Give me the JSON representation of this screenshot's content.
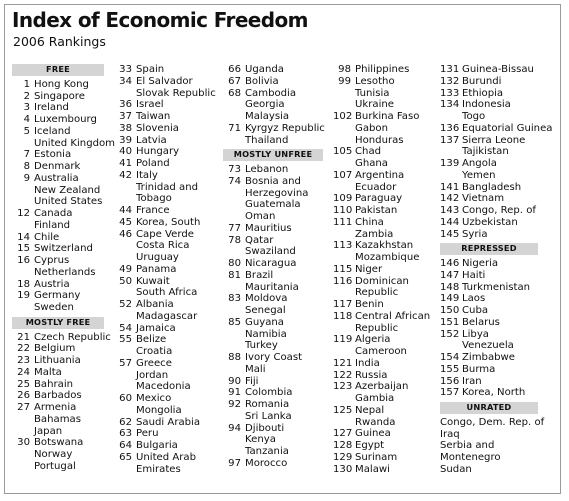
{
  "title": "Index of Economic Freedom",
  "subtitle": "2006 Rankings",
  "columns": [
    [
      {
        "h": "FREE"
      },
      {
        "r": "1",
        "n": "Hong Kong"
      },
      {
        "r": "2",
        "n": "Singapore"
      },
      {
        "r": "3",
        "n": "Ireland"
      },
      {
        "r": "4",
        "n": "Luxembourg"
      },
      {
        "r": "5",
        "n": "Iceland"
      },
      {
        "r": "",
        "n": "United Kingdom"
      },
      {
        "r": "7",
        "n": "Estonia"
      },
      {
        "r": "8",
        "n": "Denmark"
      },
      {
        "r": "9",
        "n": "Australia"
      },
      {
        "r": "",
        "n": "New Zealand"
      },
      {
        "r": "",
        "n": "United States"
      },
      {
        "r": "12",
        "n": "Canada"
      },
      {
        "r": "",
        "n": "Finland"
      },
      {
        "r": "14",
        "n": "Chile"
      },
      {
        "r": "15",
        "n": "Switzerland"
      },
      {
        "r": "16",
        "n": "Cyprus"
      },
      {
        "r": "",
        "n": "Netherlands"
      },
      {
        "r": "18",
        "n": "Austria"
      },
      {
        "r": "19",
        "n": "Germany"
      },
      {
        "r": "",
        "n": "Sweden"
      },
      {
        "h": "MOSTLY FREE"
      },
      {
        "r": "21",
        "n": "Czech Republic"
      },
      {
        "r": "22",
        "n": "Belgium"
      },
      {
        "r": "23",
        "n": "Lithuania"
      },
      {
        "r": "24",
        "n": "Malta"
      },
      {
        "r": "25",
        "n": "Bahrain"
      },
      {
        "r": "26",
        "n": "Barbados"
      },
      {
        "r": "27",
        "n": "Armenia"
      },
      {
        "r": "",
        "n": "Bahamas"
      },
      {
        "r": "",
        "n": "Japan"
      },
      {
        "r": "30",
        "n": "Botswana"
      },
      {
        "r": "",
        "n": "Norway"
      },
      {
        "r": "",
        "n": "Portugal"
      }
    ],
    [
      {
        "r": "33",
        "n": "Spain"
      },
      {
        "r": "34",
        "n": "El Salvador"
      },
      {
        "r": "",
        "n": "Slovak Republic"
      },
      {
        "r": "36",
        "n": "Israel"
      },
      {
        "r": "37",
        "n": "Taiwan"
      },
      {
        "r": "38",
        "n": "Slovenia"
      },
      {
        "r": "39",
        "n": "Latvia"
      },
      {
        "r": "40",
        "n": "Hungary"
      },
      {
        "r": "41",
        "n": "Poland"
      },
      {
        "r": "42",
        "n": "Italy"
      },
      {
        "r": "",
        "n": "Trinidad and"
      },
      {
        "r": "",
        "n": "Tobago"
      },
      {
        "r": "44",
        "n": "France"
      },
      {
        "r": "45",
        "n": "Korea, South"
      },
      {
        "r": "46",
        "n": "Cape Verde"
      },
      {
        "r": "",
        "n": "Costa Rica"
      },
      {
        "r": "",
        "n": "Uruguay"
      },
      {
        "r": "49",
        "n": "Panama"
      },
      {
        "r": "50",
        "n": "Kuwait"
      },
      {
        "r": "",
        "n": "South Africa"
      },
      {
        "r": "52",
        "n": "Albania"
      },
      {
        "r": "",
        "n": "Madagascar"
      },
      {
        "r": "54",
        "n": "Jamaica"
      },
      {
        "r": "55",
        "n": "Belize"
      },
      {
        "r": "",
        "n": "Croatia"
      },
      {
        "r": "57",
        "n": "Greece"
      },
      {
        "r": "",
        "n": "Jordan"
      },
      {
        "r": "",
        "n": "Macedonia"
      },
      {
        "r": "60",
        "n": "Mexico"
      },
      {
        "r": "",
        "n": "Mongolia"
      },
      {
        "r": "62",
        "n": "Saudi Arabia"
      },
      {
        "r": "63",
        "n": "Peru"
      },
      {
        "r": "64",
        "n": "Bulgaria"
      },
      {
        "r": "65",
        "n": "United Arab"
      },
      {
        "r": "",
        "n": "Emirates"
      }
    ],
    [
      {
        "r": "66",
        "n": "Uganda"
      },
      {
        "r": "67",
        "n": "Bolivia"
      },
      {
        "r": "68",
        "n": "Cambodia"
      },
      {
        "r": "",
        "n": "Georgia"
      },
      {
        "r": "",
        "n": "Malaysia"
      },
      {
        "r": "71",
        "n": "Kyrgyz Republic"
      },
      {
        "r": "",
        "n": "Thailand"
      },
      {
        "h": "MOSTLY UNFREE"
      },
      {
        "r": "73",
        "n": "Lebanon"
      },
      {
        "r": "74",
        "n": "Bosnia and"
      },
      {
        "r": "",
        "n": "Herzegovina"
      },
      {
        "r": "",
        "n": "Guatemala"
      },
      {
        "r": "",
        "n": "Oman"
      },
      {
        "r": "77",
        "n": "Mauritius"
      },
      {
        "r": "78",
        "n": "Qatar"
      },
      {
        "r": "",
        "n": "Swaziland"
      },
      {
        "r": "80",
        "n": "Nicaragua"
      },
      {
        "r": "81",
        "n": "Brazil"
      },
      {
        "r": "",
        "n": "Mauritania"
      },
      {
        "r": "83",
        "n": "Moldova"
      },
      {
        "r": "",
        "n": "Senegal"
      },
      {
        "r": "85",
        "n": "Guyana"
      },
      {
        "r": "",
        "n": "Namibia"
      },
      {
        "r": "",
        "n": "Turkey"
      },
      {
        "r": "88",
        "n": "Ivory Coast"
      },
      {
        "r": "",
        "n": "Mali"
      },
      {
        "r": "90",
        "n": "Fiji"
      },
      {
        "r": "91",
        "n": "Colombia"
      },
      {
        "r": "92",
        "n": "Romania"
      },
      {
        "r": "",
        "n": "Sri Lanka"
      },
      {
        "r": "94",
        "n": "Djibouti"
      },
      {
        "r": "",
        "n": "Kenya"
      },
      {
        "r": "",
        "n": "Tanzania"
      },
      {
        "r": "97",
        "n": "Morocco"
      }
    ],
    [
      {
        "r": "98",
        "n": "Philippines"
      },
      {
        "r": "99",
        "n": "Lesotho"
      },
      {
        "r": "",
        "n": "Tunisia"
      },
      {
        "r": "",
        "n": "Ukraine"
      },
      {
        "r": "102",
        "n": "Burkina Faso"
      },
      {
        "r": "",
        "n": "Gabon"
      },
      {
        "r": "",
        "n": "Honduras"
      },
      {
        "r": "105",
        "n": "Chad"
      },
      {
        "r": "",
        "n": "Ghana"
      },
      {
        "r": "107",
        "n": "Argentina"
      },
      {
        "r": "",
        "n": "Ecuador"
      },
      {
        "r": "109",
        "n": "Paraguay"
      },
      {
        "r": "110",
        "n": "Pakistan"
      },
      {
        "r": "111",
        "n": "China"
      },
      {
        "r": "",
        "n": "Zambia"
      },
      {
        "r": "113",
        "n": "Kazakhstan"
      },
      {
        "r": "",
        "n": "Mozambique"
      },
      {
        "r": "115",
        "n": "Niger"
      },
      {
        "r": "116",
        "n": "Dominican"
      },
      {
        "r": "",
        "n": "Republic"
      },
      {
        "r": "117",
        "n": "Benin"
      },
      {
        "r": "118",
        "n": "Central African"
      },
      {
        "r": "",
        "n": "Republic"
      },
      {
        "r": "119",
        "n": "Algeria"
      },
      {
        "r": "",
        "n": "Cameroon"
      },
      {
        "r": "121",
        "n": "India"
      },
      {
        "r": "122",
        "n": "Russia"
      },
      {
        "r": "123",
        "n": "Azerbaijan"
      },
      {
        "r": "",
        "n": "Gambia"
      },
      {
        "r": "125",
        "n": "Nepal"
      },
      {
        "r": "",
        "n": "Rwanda"
      },
      {
        "r": "127",
        "n": "Guinea"
      },
      {
        "r": "128",
        "n": "Egypt"
      },
      {
        "r": "129",
        "n": "Surinam"
      },
      {
        "r": "130",
        "n": "Malawi"
      }
    ],
    [
      {
        "r": "131",
        "n": "Guinea-Bissau"
      },
      {
        "r": "132",
        "n": "Burundi"
      },
      {
        "r": "133",
        "n": "Ethiopia"
      },
      {
        "r": "134",
        "n": "Indonesia"
      },
      {
        "r": "",
        "n": "Togo"
      },
      {
        "r": "136",
        "n": "Equatorial Guinea"
      },
      {
        "r": "137",
        "n": "Sierra Leone"
      },
      {
        "r": "",
        "n": "Tajikistan"
      },
      {
        "r": "139",
        "n": "Angola"
      },
      {
        "r": "",
        "n": "Yemen"
      },
      {
        "r": "141",
        "n": "Bangladesh"
      },
      {
        "r": "142",
        "n": "Vietnam"
      },
      {
        "r": "143",
        "n": "Congo, Rep. of"
      },
      {
        "r": "144",
        "n": "Uzbekistan"
      },
      {
        "r": "145",
        "n": "Syria"
      },
      {
        "h": "REPRESSED"
      },
      {
        "r": "146",
        "n": "Nigeria"
      },
      {
        "r": "147",
        "n": "Haiti"
      },
      {
        "r": "148",
        "n": "Turkmenistan"
      },
      {
        "r": "149",
        "n": "Laos"
      },
      {
        "r": "150",
        "n": "Cuba"
      },
      {
        "r": "151",
        "n": "Belarus"
      },
      {
        "r": "152",
        "n": "Libya"
      },
      {
        "r": "",
        "n": "Venezuela"
      },
      {
        "r": "154",
        "n": "Zimbabwe"
      },
      {
        "r": "155",
        "n": "Burma"
      },
      {
        "r": "156",
        "n": "Iran"
      },
      {
        "r": "157",
        "n": "Korea, North"
      },
      {
        "h": "UNRATED"
      },
      {
        "p": "Congo, Dem. Rep. of"
      },
      {
        "p": "Iraq"
      },
      {
        "p": "Serbia and"
      },
      {
        "p": "Montenegro"
      },
      {
        "p": "Sudan"
      }
    ]
  ]
}
